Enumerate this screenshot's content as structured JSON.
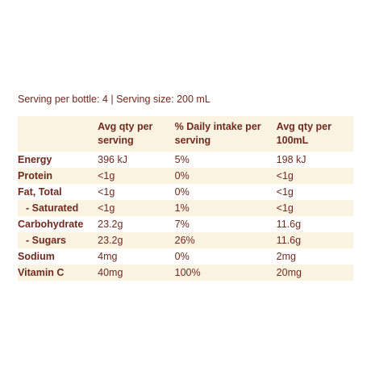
{
  "serving_info": "Serving per bottle: 4 | Serving size: 200 mL",
  "table": {
    "header": [
      "Avg qty per serving",
      "% Daily intake per serving",
      "Avg qty per 100mL"
    ],
    "rows": [
      [
        "Energy",
        "396 kJ",
        "5%",
        "198 kJ"
      ],
      [
        "Protein",
        "<1g",
        "0%",
        "<1g"
      ],
      [
        "Fat, Total",
        "<1g",
        "0%",
        "<1g"
      ],
      [
        "- Saturated",
        "<1g",
        "1%",
        "<1g"
      ],
      [
        "Carbohydrate",
        "23.2g",
        "7%",
        "11.6g"
      ],
      [
        "- Sugars",
        "23.2g",
        "26%",
        "11.6g"
      ],
      [
        "Sodium",
        "4mg",
        "0%",
        "2mg"
      ],
      [
        "Vitamin C",
        "40mg",
        "100%",
        "20mg"
      ]
    ]
  }
}
